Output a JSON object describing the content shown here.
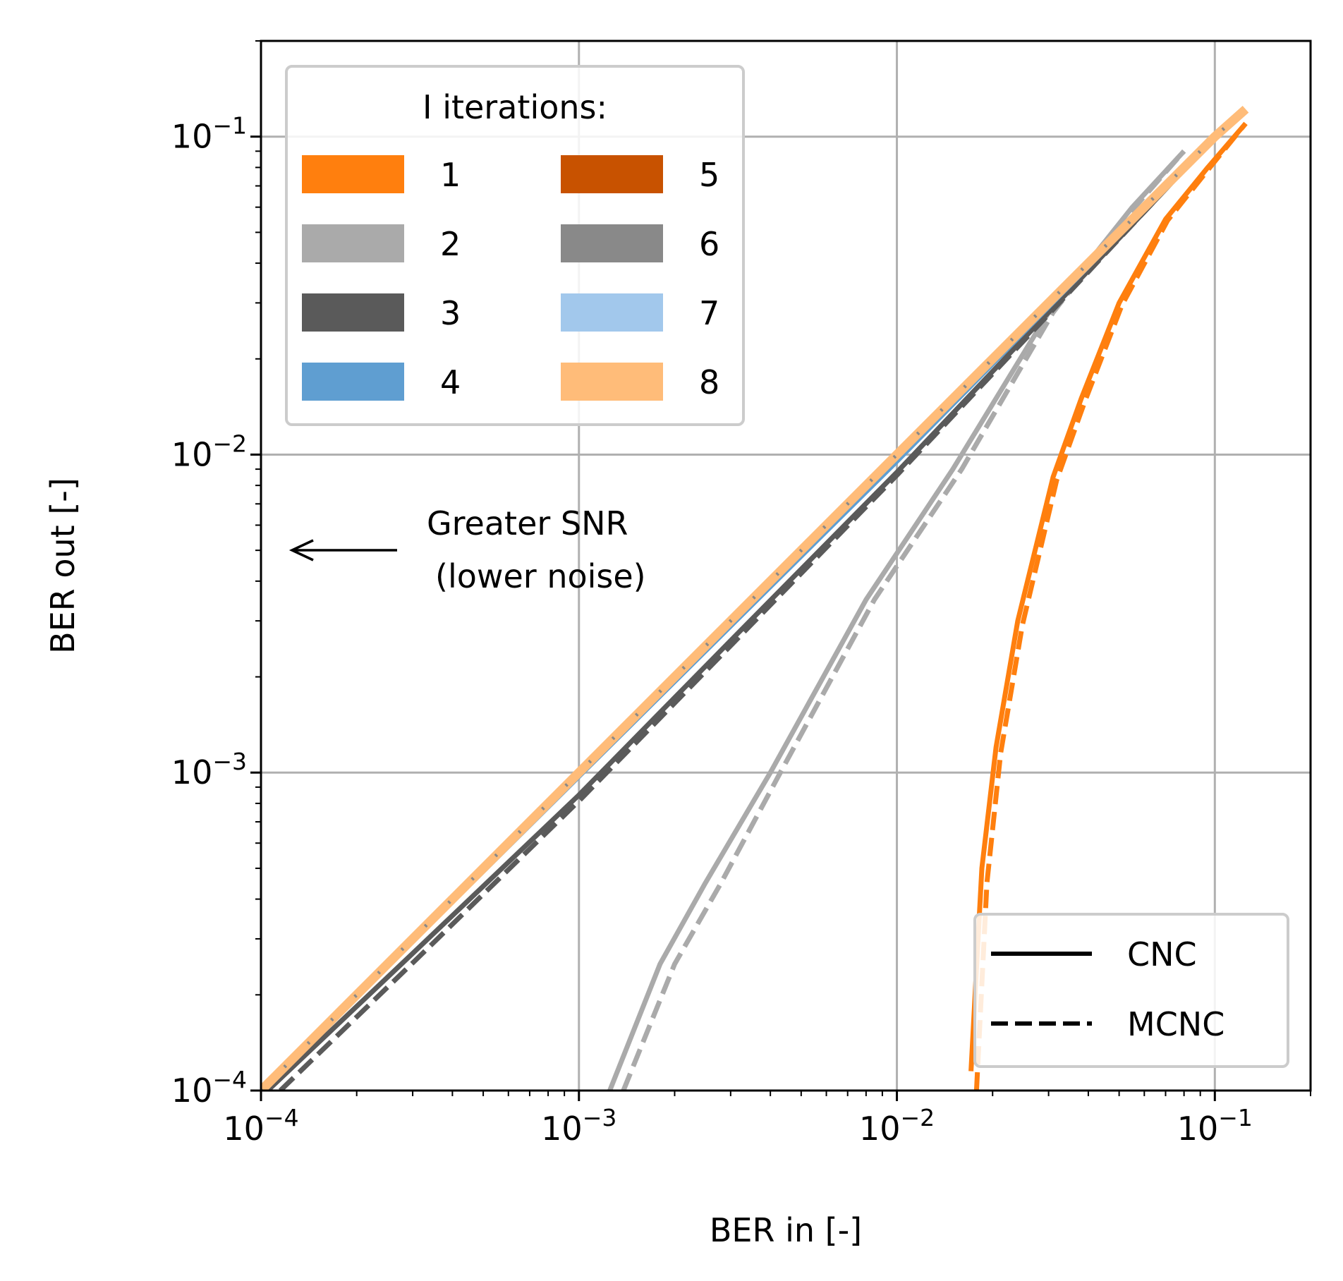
{
  "chart_data": {
    "type": "line",
    "xlabel": "BER in [-]",
    "ylabel": "BER out [-]",
    "xscale": "log",
    "yscale": "log",
    "xlim": [
      0.0001,
      0.2
    ],
    "ylim": [
      0.0001,
      0.2
    ],
    "grid": true,
    "x_ticks": [
      {
        "base": "10",
        "exp": "−4",
        "value": 0.0001
      },
      {
        "base": "10",
        "exp": "−3",
        "value": 0.001
      },
      {
        "base": "10",
        "exp": "−2",
        "value": 0.01
      },
      {
        "base": "10",
        "exp": "−1",
        "value": 0.1
      }
    ],
    "y_ticks": [
      {
        "base": "10",
        "exp": "−4",
        "value": 0.0001
      },
      {
        "base": "10",
        "exp": "−3",
        "value": 0.001
      },
      {
        "base": "10",
        "exp": "−2",
        "value": 0.01
      },
      {
        "base": "10",
        "exp": "−1",
        "value": 0.1
      }
    ],
    "legend_iterations": {
      "title": "I iterations:",
      "placement": "top-left",
      "entries": [
        {
          "label": "1",
          "color": "#ff7f0e"
        },
        {
          "label": "2",
          "color": "#aaaaaa"
        },
        {
          "label": "3",
          "color": "#5a5a5a"
        },
        {
          "label": "4",
          "color": "#5f9ed1"
        },
        {
          "label": "5",
          "color": "#c85200"
        },
        {
          "label": "6",
          "color": "#898989"
        },
        {
          "label": "7",
          "color": "#a2c8ec"
        },
        {
          "label": "8",
          "color": "#ffbc79"
        }
      ]
    },
    "legend_methods": {
      "placement": "bottom-right",
      "entries": [
        {
          "label": "CNC",
          "style": "solid"
        },
        {
          "label": "MCNC",
          "style": "dashed"
        }
      ]
    },
    "annotation": {
      "line1": "Greater SNR",
      "line2": "(lower noise)",
      "arrow": "left",
      "x": 0.00027,
      "y": 0.005
    },
    "series": [
      {
        "name": "1",
        "method": "CNC",
        "color": "#ff7f0e",
        "x": [
          0.0171,
          0.0185,
          0.0205,
          0.024,
          0.031,
          0.038,
          0.05,
          0.07,
          0.095,
          0.125
        ],
        "y": [
          0.000115,
          0.0005,
          0.0012,
          0.003,
          0.0085,
          0.015,
          0.03,
          0.055,
          0.08,
          0.11
        ]
      },
      {
        "name": "1",
        "method": "MCNC",
        "color": "#ff7f0e",
        "x": [
          0.0178,
          0.0192,
          0.0212,
          0.0248,
          0.0318,
          0.039,
          0.051,
          0.071,
          0.096,
          0.125
        ],
        "y": [
          0.0001,
          0.00045,
          0.00115,
          0.0029,
          0.0083,
          0.0147,
          0.0295,
          0.0545,
          0.0795,
          0.11
        ]
      },
      {
        "name": "2",
        "method": "CNC",
        "color": "#aaaaaa",
        "x": [
          0.00125,
          0.0018,
          0.0025,
          0.004,
          0.008,
          0.015,
          0.03,
          0.055,
          0.08
        ],
        "y": [
          0.0001,
          0.00025,
          0.00045,
          0.001,
          0.0035,
          0.009,
          0.028,
          0.06,
          0.09
        ]
      },
      {
        "name": "2",
        "method": "MCNC",
        "color": "#aaaaaa",
        "x": [
          0.00138,
          0.002,
          0.0028,
          0.0043,
          0.0085,
          0.016,
          0.031,
          0.056,
          0.08
        ],
        "y": [
          0.0001,
          0.00025,
          0.00045,
          0.001,
          0.0035,
          0.009,
          0.028,
          0.06,
          0.09
        ]
      },
      {
        "name": "3",
        "method": "CNC",
        "color": "#5a5a5a",
        "x": [
          0.000105,
          0.0003,
          0.001,
          0.003,
          0.01,
          0.03,
          0.06,
          0.1
        ],
        "y": [
          0.0001,
          0.00027,
          0.00085,
          0.0026,
          0.0088,
          0.028,
          0.058,
          0.1
        ]
      },
      {
        "name": "3",
        "method": "MCNC",
        "color": "#5a5a5a",
        "x": [
          0.000115,
          0.00031,
          0.00102,
          0.00305,
          0.0101,
          0.0302,
          0.06,
          0.1
        ],
        "y": [
          0.0001,
          0.00026,
          0.00083,
          0.00255,
          0.0087,
          0.0278,
          0.058,
          0.1
        ]
      },
      {
        "name": "4",
        "method": "CNC",
        "color": "#5f9ed1",
        "x": [
          0.0001,
          0.001,
          0.01,
          0.1
        ],
        "y": [
          0.0001,
          0.00098,
          0.0096,
          0.1
        ]
      },
      {
        "name": "8",
        "method": "CNC",
        "color": "#ffbc79",
        "x": [
          0.0001,
          0.001,
          0.01,
          0.1,
          0.125
        ],
        "y": [
          0.0001,
          0.001,
          0.01,
          0.1,
          0.122
        ]
      },
      {
        "name": "6",
        "method": "MCNC",
        "color": "#898989",
        "x": [
          0.0001,
          0.001,
          0.01,
          0.1,
          0.125
        ],
        "y": [
          0.0001,
          0.001,
          0.01,
          0.1,
          0.122
        ]
      }
    ]
  }
}
